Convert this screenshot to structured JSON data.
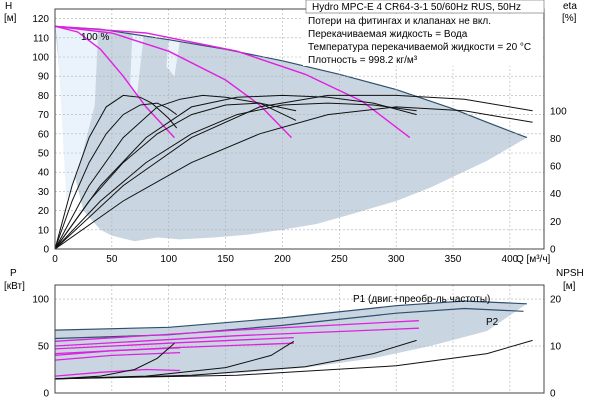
{
  "chart_data": [
    {
      "type": "line",
      "name": "qh_efficiency",
      "title": "Hydro MPC-E 4 CR64-3-1 50/60Hz RUS, 50Hz",
      "notes": [
        "Потери на фитингах и клапанах не вкл.",
        "Перекачиваемая жидкость = Вода",
        "Температура перекачиваемой жидкости = 20 °C",
        "Плотность = 998.2 кг/м³"
      ],
      "speed_label": "100 %",
      "xlabel": "Q [м³/ч]",
      "ylabel": "H",
      "ylabel_unit": "[м]",
      "y2label": "eta",
      "y2label_unit": "[%]",
      "xlim": [
        0,
        430
      ],
      "ylim": [
        0,
        125
      ],
      "xticks": [
        0,
        50,
        100,
        150,
        200,
        250,
        300,
        350,
        400
      ],
      "yticks": [
        0,
        10,
        20,
        30,
        40,
        50,
        60,
        70,
        80,
        90,
        100,
        110,
        120
      ],
      "y2ticks": [
        0,
        20,
        40,
        60,
        80,
        100
      ],
      "y2_scale_note": "eta axis: 0–100 % maps to 0–72 m on the H axis",
      "colors": {
        "envelope": "#c9d6e1",
        "envelope_edge": "#2f4f6f",
        "light_area": "#eaf3fb",
        "pump_curve": "#e020e0",
        "eta_curve": "#111111",
        "grid": "#b0b0b0"
      },
      "envelope_top": {
        "x": [
          0,
          40,
          100,
          150,
          200,
          250,
          300,
          350,
          380,
          415
        ],
        "y": [
          116,
          114.5,
          109,
          104,
          98,
          91,
          83,
          73,
          66,
          58
        ]
      },
      "envelope_bottom": {
        "x": [
          415,
          380,
          330,
          300,
          260,
          230,
          200,
          170,
          140,
          110,
          90,
          70,
          50,
          40,
          25,
          10,
          0
        ],
        "y": [
          58,
          46,
          32,
          25,
          18,
          13,
          10,
          7.5,
          6,
          5,
          6,
          4,
          7,
          10,
          20,
          55,
          116
        ]
      },
      "light_regions": [
        {
          "x": [
            0,
            38,
            35,
            20,
            10,
            2
          ],
          "y": [
            116,
            115,
            75,
            40,
            25,
            110
          ]
        },
        {
          "x": [
            68,
            78,
            72,
            66
          ],
          "y": [
            112,
            111,
            80,
            85
          ]
        },
        {
          "x": [
            100,
            110,
            105,
            98
          ],
          "y": [
            110,
            109,
            90,
            95
          ]
        }
      ],
      "series": [
        {
          "role": "pump_curve",
          "x": [
            0,
            20,
            40,
            60,
            80,
            105
          ],
          "y": [
            116,
            113,
            104,
            90,
            74,
            58
          ]
        },
        {
          "role": "pump_curve",
          "x": [
            0,
            50,
            100,
            150,
            180,
            208
          ],
          "y": [
            116,
            112.5,
            103,
            88,
            75,
            58
          ]
        },
        {
          "role": "pump_curve",
          "x": [
            0,
            80,
            160,
            220,
            270,
            312
          ],
          "y": [
            116,
            112.5,
            103,
            91,
            77,
            58
          ]
        },
        {
          "role": "eta_curve",
          "x": [
            0,
            15,
            30,
            45,
            60,
            75,
            85,
            100,
            107
          ],
          "y": [
            0,
            33,
            58,
            74,
            80,
            79,
            76,
            68,
            63
          ]
        },
        {
          "role": "eta_curve",
          "x": [
            0,
            15,
            30,
            45,
            60,
            75,
            90,
            100,
            107
          ],
          "y": [
            0,
            25,
            45,
            60,
            70,
            75,
            76,
            73,
            70
          ]
        },
        {
          "role": "eta_curve",
          "x": [
            0,
            30,
            60,
            90,
            110,
            130,
            150,
            180,
            212
          ],
          "y": [
            0,
            33,
            58,
            74,
            78,
            80,
            79,
            76,
            67
          ]
        },
        {
          "role": "eta_curve",
          "x": [
            0,
            30,
            60,
            90,
            120,
            150,
            180,
            212
          ],
          "y": [
            0,
            25,
            45,
            60,
            70,
            75,
            76,
            72
          ]
        },
        {
          "role": "eta_curve",
          "x": [
            0,
            40,
            80,
            120,
            160,
            200,
            240,
            280,
            318
          ],
          "y": [
            0,
            33,
            58,
            74,
            79,
            80,
            79,
            76,
            70
          ]
        },
        {
          "role": "eta_curve",
          "x": [
            0,
            40,
            80,
            120,
            160,
            200,
            240,
            280,
            318
          ],
          "y": [
            0,
            25,
            45,
            60,
            70,
            75,
            76,
            75,
            72
          ]
        },
        {
          "role": "eta_curve",
          "x": [
            0,
            60,
            120,
            180,
            240,
            300,
            360,
            420
          ],
          "y": [
            0,
            33,
            58,
            74,
            80,
            80,
            78,
            72
          ]
        },
        {
          "role": "eta_curve",
          "x": [
            0,
            60,
            120,
            180,
            240,
            300,
            360,
            420
          ],
          "y": [
            0,
            25,
            45,
            60,
            70,
            74,
            72,
            66
          ]
        }
      ]
    },
    {
      "type": "line",
      "name": "power_npsh",
      "ylabel": "P",
      "ylabel_unit": "[кВт]",
      "y2label": "NPSH",
      "y2label_unit": "[м]",
      "ylim": [
        0,
        115
      ],
      "yticks": [
        0,
        50,
        100
      ],
      "y2ticks": [
        0,
        10,
        20
      ],
      "y2_scale_note": "NPSH axis: 0–20 m maps to 0–100 kW on the P axis",
      "colors": {
        "envelope": "#c9d6e1",
        "envelope_edge": "#2f4f6f",
        "power_curve": "#e020e0",
        "npsh_curve": "#111111"
      },
      "envelope_top": {
        "x": [
          0,
          100,
          200,
          300,
          360,
          415
        ],
        "y": [
          67,
          70,
          80,
          93,
          98,
          95
        ]
      },
      "envelope_bottom": {
        "x": [
          415,
          380,
          330,
          280,
          220,
          170,
          130,
          100,
          70,
          40,
          15,
          0
        ],
        "y": [
          95,
          66,
          50,
          37,
          27,
          22,
          19,
          18,
          17,
          16,
          15,
          14
        ]
      },
      "series": [
        {
          "name": "P1 (двиг.+преобр-ль частоты)",
          "role": "power_edge",
          "x": [
            0,
            100,
            200,
            300,
            360,
            415
          ],
          "y": [
            67,
            70,
            80,
            93,
            98,
            95
          ]
        },
        {
          "name": "P2",
          "role": "power_edge",
          "x": [
            0,
            100,
            200,
            300,
            360,
            412
          ],
          "y": [
            58,
            62,
            72,
            85,
            90,
            87
          ]
        },
        {
          "role": "power_curve",
          "x": [
            0,
            50,
            110
          ],
          "y": [
            40,
            45,
            48
          ]
        },
        {
          "role": "power_curve",
          "x": [
            0,
            50,
            110
          ],
          "y": [
            35,
            40,
            43
          ]
        },
        {
          "role": "power_curve",
          "x": [
            0,
            100,
            210
          ],
          "y": [
            47,
            53,
            59
          ]
        },
        {
          "role": "power_curve",
          "x": [
            0,
            100,
            210
          ],
          "y": [
            42,
            48,
            53
          ]
        },
        {
          "role": "power_curve",
          "x": [
            0,
            160,
            320
          ],
          "y": [
            55,
            67,
            77
          ]
        },
        {
          "role": "power_curve",
          "x": [
            0,
            160,
            320
          ],
          "y": [
            50,
            61,
            69
          ]
        },
        {
          "role": "power_curve",
          "x": [
            0,
            40,
            80,
            110
          ],
          "y": [
            18,
            22,
            25,
            24
          ]
        },
        {
          "role": "npsh_curve",
          "x": [
            0,
            40,
            70,
            90,
            105
          ],
          "y": [
            15,
            18,
            25,
            37,
            53
          ]
        },
        {
          "role": "npsh_curve",
          "x": [
            0,
            80,
            150,
            190,
            210
          ],
          "y": [
            15,
            18,
            27,
            40,
            55
          ]
        },
        {
          "role": "npsh_curve",
          "x": [
            0,
            120,
            220,
            280,
            318
          ],
          "y": [
            15,
            19,
            28,
            42,
            56
          ]
        },
        {
          "role": "npsh_curve",
          "x": [
            0,
            160,
            300,
            380,
            420
          ],
          "y": [
            15,
            19,
            29,
            42,
            56
          ]
        }
      ]
    }
  ]
}
